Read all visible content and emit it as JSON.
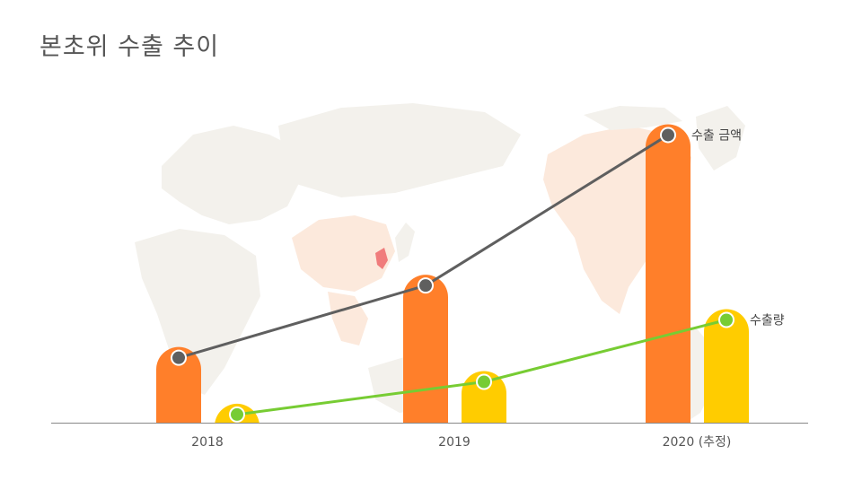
{
  "title": "본초위 수출 추이",
  "colors": {
    "amount_bar": "#FF7F2A",
    "volume_bar": "#FFCC00",
    "amount_line": "#5F5F5F",
    "volume_line": "#77CC33",
    "axis": "#888888",
    "map_land": "#F3F1EC",
    "map_highlight": "#FCE9DC",
    "korea": "#F07C7C"
  },
  "chart_data": {
    "type": "bar",
    "title": "본초위 수출 추이",
    "categories": [
      "2018",
      "2019",
      "2020 (추정)"
    ],
    "series": [
      {
        "name": "수출 금액",
        "values": [
          88,
          172,
          347
        ],
        "style": "bar+line"
      },
      {
        "name": "수출량",
        "values": [
          22,
          60,
          132
        ],
        "style": "bar+line"
      }
    ],
    "ylim": [
      0,
      360
    ],
    "xlabel": "",
    "ylabel": "",
    "grid": false,
    "legend": "inline-end-of-line",
    "background": "world-map"
  }
}
